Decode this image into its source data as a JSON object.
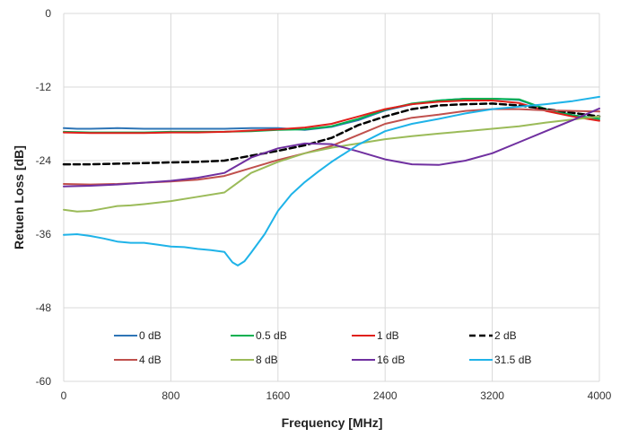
{
  "chart_data": {
    "type": "line",
    "title": "",
    "xlabel": "Frequency [MHz]",
    "ylabel": "Retuen Loss [dB]",
    "xlim": [
      0,
      4000
    ],
    "ylim": [
      -60,
      0
    ],
    "xticks": [
      0,
      800,
      1600,
      2400,
      3200,
      4000
    ],
    "yticks": [
      0,
      -12,
      -24,
      -36,
      -48,
      -60
    ],
    "xtick_labels": [
      "0",
      "800",
      "1600",
      "2400",
      "3200",
      "4000"
    ],
    "ytick_labels": [
      "0",
      "-12",
      "-24",
      "-36",
      "-48",
      "-60"
    ],
    "grid": true,
    "legend_position": "lower-center",
    "series": [
      {
        "name": "0 dB",
        "color": "#2e75b6",
        "dash": false,
        "x": [
          0,
          100,
          200,
          400,
          600,
          800,
          1000,
          1200,
          1400,
          1600,
          1800,
          2000,
          2200,
          2400,
          2600,
          2800,
          3000,
          3200,
          3400,
          3600,
          3800,
          4000
        ],
        "y": [
          -18.7,
          -18.8,
          -18.8,
          -18.7,
          -18.8,
          -18.8,
          -18.8,
          -18.8,
          -18.7,
          -18.7,
          -19.0,
          -18.5,
          -17.4,
          -15.8,
          -14.8,
          -14.2,
          -13.9,
          -13.9,
          -14.1,
          -15.6,
          -16.6,
          -17.2
        ]
      },
      {
        "name": "0.5 dB",
        "color": "#00b050",
        "dash": false,
        "x": [
          0,
          200,
          400,
          600,
          800,
          1000,
          1200,
          1400,
          1600,
          1800,
          2000,
          2200,
          2400,
          2600,
          2800,
          3000,
          3200,
          3400,
          3600,
          3800,
          4000
        ],
        "y": [
          -19.3,
          -19.4,
          -19.4,
          -19.4,
          -19.3,
          -19.3,
          -19.3,
          -19.2,
          -19.0,
          -18.9,
          -18.4,
          -17.2,
          -15.7,
          -14.7,
          -14.2,
          -13.9,
          -13.9,
          -14.0,
          -15.6,
          -16.6,
          -17.2
        ]
      },
      {
        "name": "1 dB",
        "color": "#e0201b",
        "dash": false,
        "x": [
          0,
          200,
          400,
          600,
          800,
          1000,
          1200,
          1400,
          1600,
          1800,
          2000,
          2200,
          2400,
          2600,
          2800,
          3000,
          3200,
          3400,
          3600,
          3800,
          4000
        ],
        "y": [
          -19.4,
          -19.5,
          -19.5,
          -19.5,
          -19.4,
          -19.4,
          -19.3,
          -19.1,
          -18.9,
          -18.6,
          -18.0,
          -16.8,
          -15.6,
          -14.8,
          -14.4,
          -14.2,
          -14.2,
          -14.6,
          -15.9,
          -16.8,
          -17.5
        ]
      },
      {
        "name": "2 dB",
        "color": "#000000",
        "dash": true,
        "x": [
          0,
          200,
          400,
          600,
          800,
          1000,
          1200,
          1400,
          1600,
          1800,
          2000,
          2200,
          2400,
          2600,
          2800,
          3000,
          3200,
          3400,
          3600,
          3800,
          4000
        ],
        "y": [
          -24.6,
          -24.6,
          -24.5,
          -24.4,
          -24.3,
          -24.2,
          -24.0,
          -23.2,
          -22.4,
          -21.5,
          -20.3,
          -18.2,
          -16.8,
          -15.6,
          -15.0,
          -14.8,
          -14.7,
          -15.0,
          -15.6,
          -16.2,
          -16.8
        ]
      },
      {
        "name": "4 dB",
        "color": "#c0504d",
        "dash": false,
        "x": [
          0,
          200,
          400,
          600,
          800,
          1000,
          1200,
          1400,
          1600,
          1800,
          2000,
          2200,
          2400,
          2600,
          2800,
          3000,
          3200,
          3400,
          3600,
          3800,
          4000
        ],
        "y": [
          -27.8,
          -27.9,
          -27.8,
          -27.6,
          -27.4,
          -27.1,
          -26.5,
          -25.2,
          -23.9,
          -22.8,
          -21.6,
          -19.8,
          -18.0,
          -17.0,
          -16.5,
          -15.9,
          -15.6,
          -15.6,
          -15.8,
          -15.9,
          -16.0
        ]
      },
      {
        "name": "8 dB",
        "color": "#9bbb59",
        "dash": false,
        "x": [
          0,
          100,
          200,
          300,
          400,
          500,
          600,
          800,
          1000,
          1200,
          1400,
          1600,
          1800,
          2000,
          2200,
          2400,
          2600,
          2800,
          3000,
          3200,
          3400,
          3600,
          3800,
          4000
        ],
        "y": [
          -32.0,
          -32.3,
          -32.2,
          -31.8,
          -31.4,
          -31.3,
          -31.1,
          -30.6,
          -29.9,
          -29.2,
          -26.0,
          -24.2,
          -22.8,
          -21.9,
          -21.2,
          -20.5,
          -20.0,
          -19.6,
          -19.2,
          -18.8,
          -18.4,
          -17.8,
          -17.3,
          -16.8
        ]
      },
      {
        "name": "16 dB",
        "color": "#7030a0",
        "dash": false,
        "x": [
          0,
          200,
          400,
          600,
          800,
          1000,
          1200,
          1400,
          1600,
          1800,
          2000,
          2200,
          2400,
          2600,
          2800,
          3000,
          3200,
          3400,
          3600,
          3800,
          4000
        ],
        "y": [
          -28.2,
          -28.1,
          -27.9,
          -27.6,
          -27.3,
          -26.8,
          -26.0,
          -23.5,
          -22.0,
          -21.2,
          -21.3,
          -22.5,
          -23.8,
          -24.6,
          -24.7,
          -24.0,
          -22.8,
          -21.0,
          -19.2,
          -17.4,
          -15.5
        ]
      },
      {
        "name": "31.5 dB",
        "color": "#1fb3e8",
        "dash": false,
        "x": [
          0,
          100,
          200,
          300,
          400,
          500,
          600,
          700,
          800,
          900,
          1000,
          1100,
          1200,
          1260,
          1300,
          1350,
          1400,
          1500,
          1600,
          1700,
          1800,
          1900,
          2000,
          2200,
          2400,
          2600,
          2800,
          3000,
          3200,
          3400,
          3600,
          3800,
          4000
        ],
        "y": [
          -36.1,
          -36.0,
          -36.3,
          -36.7,
          -37.2,
          -37.4,
          -37.4,
          -37.7,
          -38.0,
          -38.1,
          -38.4,
          -38.6,
          -38.9,
          -40.6,
          -41.1,
          -40.4,
          -39.0,
          -36.0,
          -32.2,
          -29.5,
          -27.5,
          -25.8,
          -24.2,
          -21.4,
          -19.2,
          -18.0,
          -17.2,
          -16.3,
          -15.6,
          -15.2,
          -14.8,
          -14.3,
          -13.6
        ]
      }
    ]
  }
}
